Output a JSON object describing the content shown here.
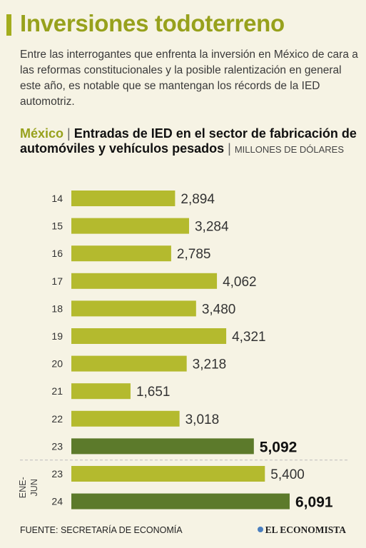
{
  "header": {
    "title": "Inversiones todoterreno",
    "intro": "Entre las interrogantes que enfrenta la inversión en México de cara a las reformas constitucionales y la posible ralentización en general este año, es notable que se mantengan los récords de la IED automotriz."
  },
  "subhead": {
    "country": "México",
    "separator": "|",
    "text": "Entradas de IED en el sector de fabricación de automóviles y vehículos pesados",
    "units": "MILLONES DE DÓLARES"
  },
  "footer": {
    "source": "FUENTE: SECRETARÍA DE ECONOMÍA",
    "logo": "EL ECONOMISTA"
  },
  "colors": {
    "bar_light": "#b4ba2e",
    "bar_dark": "#5c7a2b",
    "title": "#97a11c"
  },
  "chart_data": {
    "type": "bar",
    "orientation": "horizontal",
    "title": "Entradas de IED en el sector de fabricación de automóviles y vehículos pesados",
    "ylabel": "",
    "xlabel": "",
    "group_label": "ENE-JUN",
    "categories": [
      "14",
      "15",
      "16",
      "17",
      "18",
      "19",
      "20",
      "21",
      "22",
      "23",
      "23",
      "24"
    ],
    "values": [
      2894,
      3284,
      2785,
      4062,
      3480,
      4321,
      3218,
      1651,
      3018,
      5092,
      5400,
      6091
    ],
    "value_labels": [
      "2,894",
      "3,284",
      "2,785",
      "4,062",
      "3,480",
      "4,321",
      "3,218",
      "1,651",
      "3,018",
      "5,092",
      "5,400",
      "6,091"
    ],
    "highlight": [
      false,
      false,
      false,
      false,
      false,
      false,
      false,
      false,
      false,
      true,
      false,
      true
    ],
    "groups": [
      "annual",
      "annual",
      "annual",
      "annual",
      "annual",
      "annual",
      "annual",
      "annual",
      "annual",
      "annual",
      "ene-jun",
      "ene-jun"
    ],
    "xlim": [
      0,
      6091
    ],
    "grid": false
  }
}
